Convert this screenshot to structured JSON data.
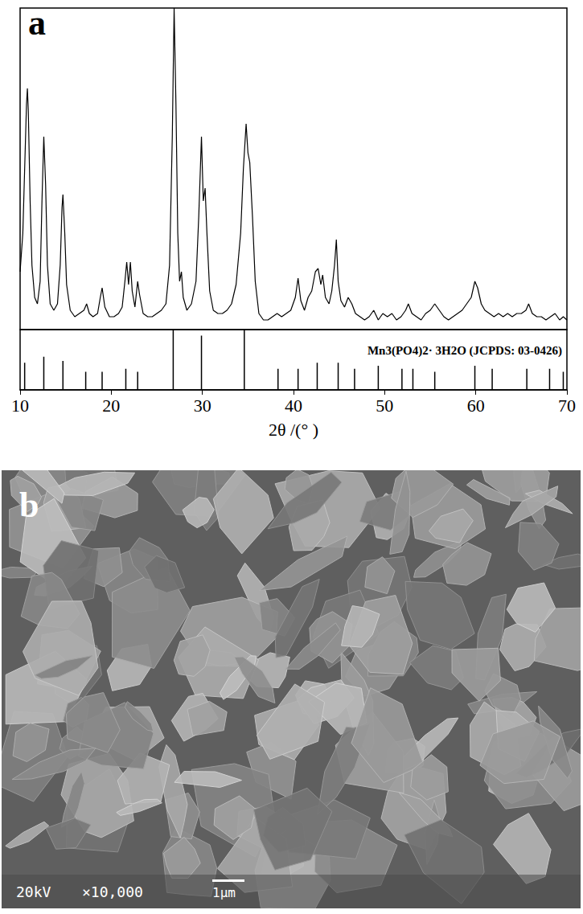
{
  "chart_data": {
    "type": "line",
    "panel_label": "a",
    "color": "#000000",
    "grid": false,
    "tick_labels": "x",
    "xlabel": "2θ /(° )",
    "xlim": [
      10,
      70
    ],
    "xticks": [
      10,
      20,
      30,
      40,
      50,
      60,
      70
    ],
    "ylim": [
      0,
      100
    ],
    "x": [
      10.0,
      10.3,
      10.5,
      10.7,
      10.8,
      10.9,
      11.1,
      11.3,
      11.6,
      11.9,
      12.2,
      12.4,
      12.6,
      12.8,
      13.0,
      13.3,
      13.7,
      14.1,
      14.4,
      14.6,
      14.7,
      14.9,
      15.1,
      15.5,
      16.0,
      16.5,
      17.0,
      17.3,
      17.6,
      18.0,
      18.5,
      18.8,
      19.0,
      19.3,
      19.8,
      20.3,
      20.8,
      21.2,
      21.5,
      21.7,
      21.9,
      22.1,
      22.3,
      22.6,
      22.9,
      23.1,
      23.5,
      24.0,
      24.5,
      25.0,
      25.5,
      26.0,
      26.4,
      26.7,
      26.9,
      27.1,
      27.3,
      27.5,
      27.7,
      27.9,
      28.3,
      28.8,
      29.3,
      29.6,
      29.9,
      30.1,
      30.3,
      30.5,
      30.8,
      31.2,
      31.7,
      32.2,
      32.7,
      33.2,
      33.7,
      34.2,
      34.5,
      34.8,
      35.0,
      35.2,
      35.5,
      35.8,
      36.2,
      36.7,
      37.2,
      37.7,
      38.2,
      38.7,
      39.2,
      39.7,
      40.2,
      40.5,
      40.8,
      41.2,
      41.6,
      42.0,
      42.4,
      42.7,
      43.0,
      43.2,
      43.5,
      43.9,
      44.2,
      44.5,
      44.7,
      44.9,
      45.2,
      45.6,
      46.0,
      46.4,
      46.8,
      47.3,
      47.8,
      48.3,
      48.8,
      49.3,
      49.8,
      50.3,
      50.8,
      51.3,
      51.8,
      52.3,
      52.6,
      53.0,
      53.5,
      54.0,
      54.5,
      55.0,
      55.5,
      56.0,
      56.5,
      57.0,
      57.5,
      58.0,
      58.5,
      59.0,
      59.5,
      59.9,
      60.2,
      60.6,
      61.0,
      61.5,
      62.0,
      62.5,
      63.0,
      63.5,
      64.0,
      64.5,
      65.0,
      65.5,
      65.8,
      66.2,
      66.7,
      67.2,
      67.7,
      68.2,
      68.7,
      69.2,
      69.6,
      70.0
    ],
    "values": [
      18,
      30,
      50,
      70,
      75,
      68,
      40,
      20,
      10,
      8,
      15,
      40,
      60,
      45,
      20,
      8,
      6,
      8,
      20,
      38,
      42,
      30,
      14,
      6,
      4,
      5,
      6,
      8,
      5,
      4,
      5,
      10,
      13,
      7,
      4,
      4,
      5,
      7,
      15,
      21,
      14,
      21,
      12,
      7,
      15,
      11,
      5,
      4,
      4,
      5,
      6,
      8,
      20,
      60,
      100,
      70,
      30,
      15,
      18,
      10,
      6,
      8,
      15,
      35,
      60,
      40,
      44,
      30,
      12,
      6,
      5,
      5,
      6,
      8,
      14,
      30,
      50,
      64,
      55,
      52,
      35,
      15,
      5,
      3,
      3,
      4,
      5,
      4,
      5,
      6,
      10,
      16,
      9,
      6,
      10,
      12,
      18,
      19,
      14,
      17,
      10,
      8,
      12,
      20,
      28,
      15,
      9,
      7,
      10,
      8,
      5,
      4,
      3,
      4,
      6,
      3,
      5,
      4,
      5,
      3,
      4,
      6,
      8,
      5,
      4,
      3,
      5,
      6,
      8,
      6,
      4,
      3,
      4,
      5,
      6,
      8,
      10,
      15,
      13,
      8,
      6,
      5,
      4,
      5,
      4,
      5,
      4,
      5,
      5,
      6,
      8,
      5,
      4,
      4,
      3,
      4,
      5,
      3,
      4,
      3
    ],
    "reference": {
      "type": "bar",
      "label": "Mn3(PO4)2· 3H2O (JCPDS: 03-0426)",
      "color": "#000000",
      "ylim": [
        0,
        100
      ],
      "x": [
        10.5,
        12.6,
        14.7,
        17.2,
        19.0,
        21.6,
        22.9,
        26.8,
        29.9,
        34.6,
        38.3,
        40.5,
        42.6,
        44.9,
        46.7,
        49.3,
        51.9,
        53.1,
        55.5,
        59.9,
        61.8,
        65.6,
        68.1,
        69.6
      ],
      "values": [
        45,
        55,
        48,
        30,
        30,
        35,
        30,
        100,
        90,
        100,
        35,
        35,
        45,
        45,
        35,
        40,
        35,
        35,
        30,
        40,
        35,
        35,
        35,
        30
      ]
    }
  },
  "image_panel": {
    "panel_label": "b",
    "voltage": "20kV",
    "magnification": "×10,000",
    "scale_bar": "1μm"
  }
}
